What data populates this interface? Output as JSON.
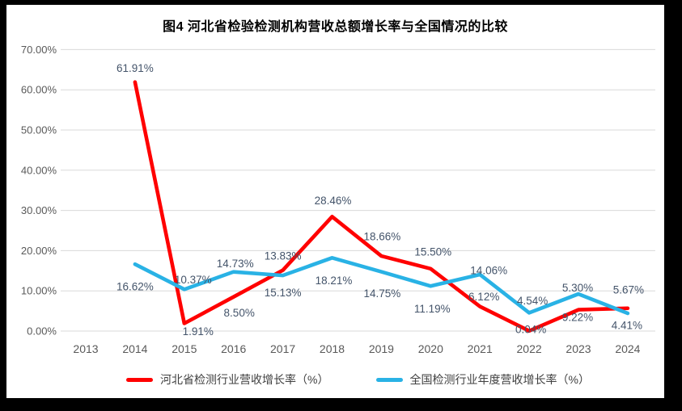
{
  "title": "图4 河北省检验检测机构营收总额增长率与全国情况的比较",
  "colors": {
    "background": "#000000",
    "panel": "#FFFFFF",
    "gridline": "#D9D9D9",
    "axis_text": "#595959",
    "data_label_text": "#44546A",
    "series_red": "#FF0000",
    "series_blue": "#29B2E5"
  },
  "chart_data": {
    "type": "line",
    "title": "图4 河北省检验检测机构营收总额增长率与全国情况的比较",
    "categories": [
      "2013",
      "2014",
      "2015",
      "2016",
      "2017",
      "2018",
      "2019",
      "2020",
      "2021",
      "2022",
      "2023",
      "2024"
    ],
    "series": [
      {
        "name": "河北省检测行业营收增长率（%）",
        "color": "#FF0000",
        "values": [
          null,
          61.91,
          1.91,
          8.5,
          15.13,
          28.46,
          18.66,
          15.5,
          6.12,
          0.04,
          5.3,
          5.67
        ],
        "label_offsets": [
          null,
          [
            0,
            -17
          ],
          [
            17,
            10
          ],
          [
            7,
            20
          ],
          [
            0,
            28
          ],
          [
            1,
            -20
          ],
          [
            1,
            -24
          ],
          [
            3,
            -21
          ],
          [
            5,
            -12
          ],
          [
            2,
            -2
          ],
          [
            -1,
            -27
          ],
          [
            1,
            -23
          ]
        ]
      },
      {
        "name": "全国检测行业年度营收增长率（%）",
        "color": "#29B2E5",
        "values": [
          null,
          16.62,
          10.37,
          14.73,
          13.83,
          18.21,
          14.75,
          11.19,
          14.06,
          4.54,
          9.22,
          4.41
        ],
        "label_offsets": [
          null,
          [
            0,
            28
          ],
          [
            11,
            -12
          ],
          [
            2,
            -10
          ],
          [
            0,
            -24
          ],
          [
            2,
            28
          ],
          [
            1,
            27
          ],
          [
            2,
            28
          ],
          [
            11,
            -5
          ],
          [
            4,
            -15
          ],
          [
            -1,
            29
          ],
          [
            -1,
            15
          ]
        ]
      }
    ],
    "xlabel": "",
    "ylabel": "",
    "ylim": [
      0,
      70
    ],
    "y_tick_step": 10,
    "y_ticks": [
      "70.00%",
      "60.00%",
      "50.00%",
      "40.00%",
      "30.00%",
      "20.00%",
      "10.00%",
      "0.00%"
    ],
    "grid": true,
    "data_labels": true,
    "label_format": "0.00%",
    "legend_position": "bottom"
  }
}
